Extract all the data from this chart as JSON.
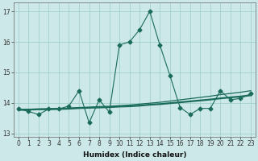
{
  "title": "",
  "xlabel": "Humidex (Indice chaleur)",
  "x_values": [
    0,
    1,
    2,
    3,
    4,
    5,
    6,
    7,
    8,
    9,
    10,
    11,
    12,
    13,
    14,
    15,
    16,
    17,
    18,
    19,
    20,
    21,
    22,
    23
  ],
  "y_main": [
    13.8,
    13.72,
    13.62,
    13.8,
    13.8,
    13.9,
    14.4,
    13.35,
    14.1,
    13.7,
    15.9,
    16.0,
    16.4,
    17.0,
    15.9,
    14.9,
    13.85,
    13.62,
    13.82,
    13.82,
    14.4,
    14.1,
    14.15,
    14.3
  ],
  "y_trend1": [
    13.78,
    13.79,
    13.8,
    13.81,
    13.82,
    13.83,
    13.85,
    13.86,
    13.88,
    13.89,
    13.91,
    13.93,
    13.96,
    13.99,
    14.02,
    14.06,
    14.1,
    14.14,
    14.18,
    14.22,
    14.27,
    14.31,
    14.35,
    14.4
  ],
  "y_trend2": [
    13.77,
    13.78,
    13.79,
    13.79,
    13.8,
    13.81,
    13.83,
    13.84,
    13.85,
    13.86,
    13.88,
    13.89,
    13.91,
    13.94,
    13.96,
    13.99,
    14.02,
    14.05,
    14.08,
    14.11,
    14.15,
    14.18,
    14.21,
    14.25
  ],
  "line_color": "#1a6b5a",
  "bg_color": "#cce8e8",
  "grid_color": "#99cccc",
  "ylim": [
    12.9,
    17.3
  ],
  "yticks": [
    13,
    14,
    15,
    16,
    17
  ],
  "ytick_labels": [
    "13",
    "14",
    "15",
    "16",
    "17"
  ],
  "marker": "D",
  "markersize": 2.5,
  "tick_fontsize": 5.5,
  "xlabel_fontsize": 6.5
}
